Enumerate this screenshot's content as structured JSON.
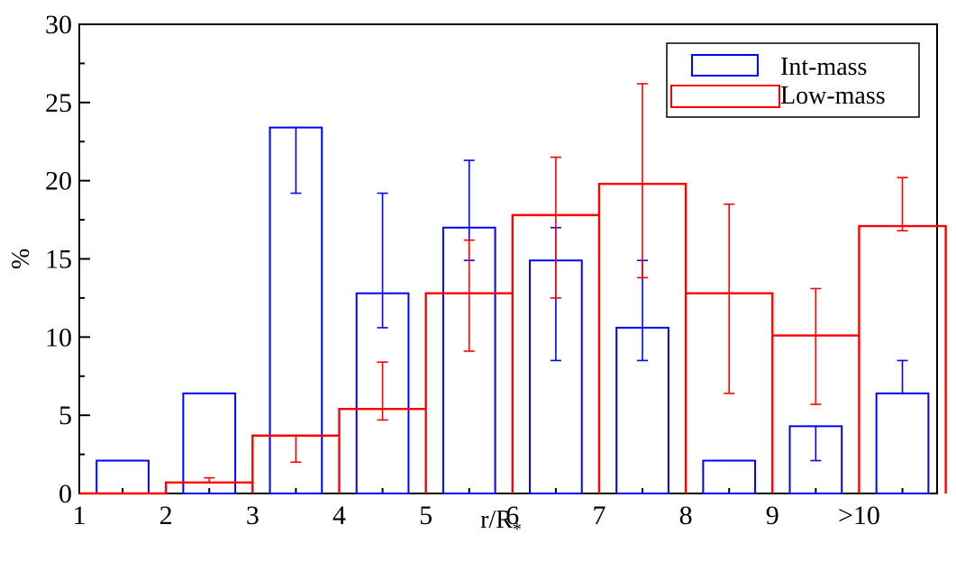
{
  "chart_data": {
    "type": "bar",
    "title": "",
    "xlabel_main": "r/R",
    "xlabel_sub": "*",
    "ylabel": "%",
    "xlim": [
      1,
      10.9
    ],
    "ylim": [
      0,
      30
    ],
    "x_ticks": [
      {
        "pos": 1,
        "label": "1"
      },
      {
        "pos": 2,
        "label": "2"
      },
      {
        "pos": 3,
        "label": "3"
      },
      {
        "pos": 4,
        "label": "4"
      },
      {
        "pos": 5,
        "label": "5"
      },
      {
        "pos": 6,
        "label": "6"
      },
      {
        "pos": 7,
        "label": "7"
      },
      {
        "pos": 8,
        "label": "8"
      },
      {
        "pos": 9,
        "label": "9"
      },
      {
        "pos": 10,
        "label": ">10"
      }
    ],
    "y_ticks": [
      0,
      5,
      10,
      15,
      20,
      25,
      30
    ],
    "legend_position": "top-right",
    "grid": false,
    "series": [
      {
        "name": "Int-mass",
        "color": "#0000ff",
        "style": "bars",
        "x": [
          1.5,
          2.5,
          3.5,
          4.5,
          5.5,
          6.5,
          7.5,
          8.5,
          9.5,
          10.5
        ],
        "values": [
          2.1,
          6.4,
          23.4,
          12.8,
          17.0,
          14.9,
          10.6,
          2.1,
          4.3,
          6.4
        ],
        "err_low": [
          null,
          null,
          19.2,
          10.6,
          14.9,
          8.5,
          8.5,
          null,
          2.1,
          6.4
        ],
        "err_high": [
          null,
          null,
          23.4,
          19.2,
          21.3,
          17.0,
          14.9,
          null,
          4.3,
          8.5
        ]
      },
      {
        "name": "Low-mass",
        "color": "#ff0000",
        "style": "step",
        "x": [
          1.5,
          2.5,
          3.5,
          4.5,
          5.5,
          6.5,
          7.5,
          8.5,
          9.5,
          10.5
        ],
        "values": [
          0.0,
          0.7,
          3.7,
          5.4,
          12.8,
          17.8,
          19.8,
          12.8,
          10.1,
          17.1
        ],
        "err_low": [
          null,
          0.7,
          2.0,
          4.7,
          9.1,
          12.5,
          13.8,
          6.4,
          5.7,
          16.8
        ],
        "err_high": [
          null,
          1.0,
          3.7,
          8.4,
          16.2,
          21.5,
          26.2,
          18.5,
          13.1,
          20.2
        ]
      }
    ]
  }
}
